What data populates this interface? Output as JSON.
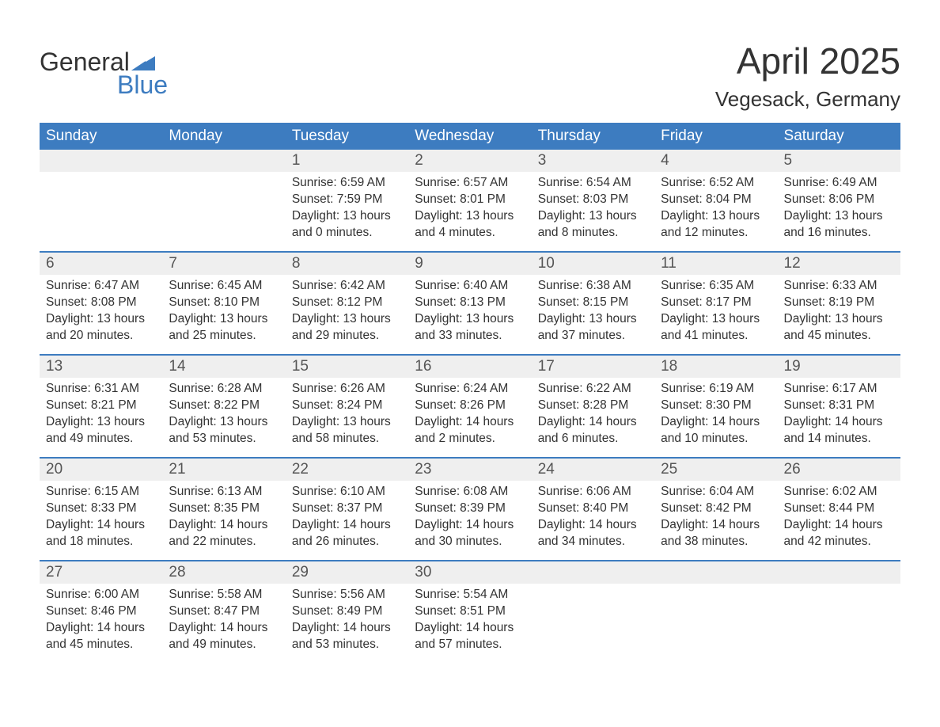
{
  "logo": {
    "word1": "General",
    "word2": "Blue"
  },
  "title": "April 2025",
  "location": "Vegesack, Germany",
  "colors": {
    "brand_blue": "#3d7cc0",
    "header_text": "#ffffff",
    "daynum_bg": "#efefef",
    "body_text": "#333333"
  },
  "day_labels": [
    "Sunday",
    "Monday",
    "Tuesday",
    "Wednesday",
    "Thursday",
    "Friday",
    "Saturday"
  ],
  "weeks": [
    [
      null,
      null,
      {
        "n": "1",
        "sr": "6:59 AM",
        "ss": "7:59 PM",
        "dlh": "13",
        "dlm": "0"
      },
      {
        "n": "2",
        "sr": "6:57 AM",
        "ss": "8:01 PM",
        "dlh": "13",
        "dlm": "4"
      },
      {
        "n": "3",
        "sr": "6:54 AM",
        "ss": "8:03 PM",
        "dlh": "13",
        "dlm": "8"
      },
      {
        "n": "4",
        "sr": "6:52 AM",
        "ss": "8:04 PM",
        "dlh": "13",
        "dlm": "12"
      },
      {
        "n": "5",
        "sr": "6:49 AM",
        "ss": "8:06 PM",
        "dlh": "13",
        "dlm": "16"
      }
    ],
    [
      {
        "n": "6",
        "sr": "6:47 AM",
        "ss": "8:08 PM",
        "dlh": "13",
        "dlm": "20"
      },
      {
        "n": "7",
        "sr": "6:45 AM",
        "ss": "8:10 PM",
        "dlh": "13",
        "dlm": "25"
      },
      {
        "n": "8",
        "sr": "6:42 AM",
        "ss": "8:12 PM",
        "dlh": "13",
        "dlm": "29"
      },
      {
        "n": "9",
        "sr": "6:40 AM",
        "ss": "8:13 PM",
        "dlh": "13",
        "dlm": "33"
      },
      {
        "n": "10",
        "sr": "6:38 AM",
        "ss": "8:15 PM",
        "dlh": "13",
        "dlm": "37"
      },
      {
        "n": "11",
        "sr": "6:35 AM",
        "ss": "8:17 PM",
        "dlh": "13",
        "dlm": "41"
      },
      {
        "n": "12",
        "sr": "6:33 AM",
        "ss": "8:19 PM",
        "dlh": "13",
        "dlm": "45"
      }
    ],
    [
      {
        "n": "13",
        "sr": "6:31 AM",
        "ss": "8:21 PM",
        "dlh": "13",
        "dlm": "49"
      },
      {
        "n": "14",
        "sr": "6:28 AM",
        "ss": "8:22 PM",
        "dlh": "13",
        "dlm": "53"
      },
      {
        "n": "15",
        "sr": "6:26 AM",
        "ss": "8:24 PM",
        "dlh": "13",
        "dlm": "58"
      },
      {
        "n": "16",
        "sr": "6:24 AM",
        "ss": "8:26 PM",
        "dlh": "14",
        "dlm": "2"
      },
      {
        "n": "17",
        "sr": "6:22 AM",
        "ss": "8:28 PM",
        "dlh": "14",
        "dlm": "6"
      },
      {
        "n": "18",
        "sr": "6:19 AM",
        "ss": "8:30 PM",
        "dlh": "14",
        "dlm": "10"
      },
      {
        "n": "19",
        "sr": "6:17 AM",
        "ss": "8:31 PM",
        "dlh": "14",
        "dlm": "14"
      }
    ],
    [
      {
        "n": "20",
        "sr": "6:15 AM",
        "ss": "8:33 PM",
        "dlh": "14",
        "dlm": "18"
      },
      {
        "n": "21",
        "sr": "6:13 AM",
        "ss": "8:35 PM",
        "dlh": "14",
        "dlm": "22"
      },
      {
        "n": "22",
        "sr": "6:10 AM",
        "ss": "8:37 PM",
        "dlh": "14",
        "dlm": "26"
      },
      {
        "n": "23",
        "sr": "6:08 AM",
        "ss": "8:39 PM",
        "dlh": "14",
        "dlm": "30"
      },
      {
        "n": "24",
        "sr": "6:06 AM",
        "ss": "8:40 PM",
        "dlh": "14",
        "dlm": "34"
      },
      {
        "n": "25",
        "sr": "6:04 AM",
        "ss": "8:42 PM",
        "dlh": "14",
        "dlm": "38"
      },
      {
        "n": "26",
        "sr": "6:02 AM",
        "ss": "8:44 PM",
        "dlh": "14",
        "dlm": "42"
      }
    ],
    [
      {
        "n": "27",
        "sr": "6:00 AM",
        "ss": "8:46 PM",
        "dlh": "14",
        "dlm": "45"
      },
      {
        "n": "28",
        "sr": "5:58 AM",
        "ss": "8:47 PM",
        "dlh": "14",
        "dlm": "49"
      },
      {
        "n": "29",
        "sr": "5:56 AM",
        "ss": "8:49 PM",
        "dlh": "14",
        "dlm": "53"
      },
      {
        "n": "30",
        "sr": "5:54 AM",
        "ss": "8:51 PM",
        "dlh": "14",
        "dlm": "57"
      },
      null,
      null,
      null
    ]
  ],
  "labels": {
    "sunrise": "Sunrise: ",
    "sunset": "Sunset: ",
    "daylight1": "Daylight: ",
    "daylight2": " hours",
    "daylight3": "and ",
    "daylight4": " minutes."
  }
}
